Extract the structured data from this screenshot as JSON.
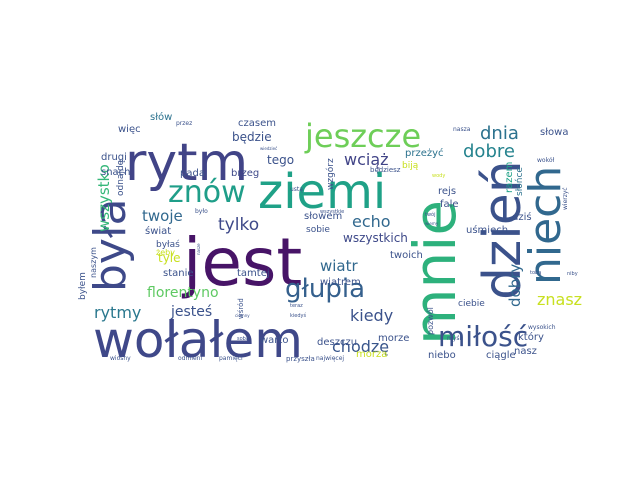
{
  "words": [
    {
      "text": "jest",
      "color": "#471467"
    },
    {
      "text": "mnie",
      "color": "#2db17c"
    },
    {
      "text": "wołałem",
      "color": "#3f4889"
    },
    {
      "text": "ziemi",
      "color": "#1fa187"
    },
    {
      "text": "rytm",
      "color": "#414487"
    },
    {
      "text": "dzień",
      "color": "#3b528b"
    },
    {
      "text": "była",
      "color": "#3e4989"
    },
    {
      "text": "niech",
      "color": "#31688e"
    },
    {
      "text": "jeszcze",
      "color": "#6ece58"
    },
    {
      "text": "znów",
      "color": "#1f9e89"
    },
    {
      "text": "głupia",
      "color": "#35608d"
    },
    {
      "text": "miłość",
      "color": "#3b528b"
    },
    {
      "text": "dnia",
      "color": "#2c728e"
    },
    {
      "text": "dobre",
      "color": "#25838e"
    },
    {
      "text": "wciąż",
      "color": "#414487"
    },
    {
      "text": "echo",
      "color": "#31688e"
    },
    {
      "text": "tylko",
      "color": "#3e4989"
    },
    {
      "text": "twoje",
      "color": "#31688e"
    },
    {
      "text": "wiatr",
      "color": "#31688e"
    },
    {
      "text": "florentyno",
      "color": "#5ec962"
    },
    {
      "text": "jesteś",
      "color": "#3b528b"
    },
    {
      "text": "rytmy",
      "color": "#2a788e"
    },
    {
      "text": "kiedy",
      "color": "#3b528b"
    },
    {
      "text": "chodzę",
      "color": "#39568c"
    },
    {
      "text": "znasz",
      "color": "#c8e020"
    },
    {
      "text": "dobry",
      "color": "#31688e"
    },
    {
      "text": "wszystko",
      "color": "#35b779"
    },
    {
      "text": "wszystkich",
      "color": "#3e4989"
    },
    {
      "text": "będzie",
      "color": "#3b528b"
    },
    {
      "text": "czasem",
      "color": "#3b528b"
    },
    {
      "text": "więc",
      "color": "#3b528b"
    },
    {
      "text": "słów",
      "color": "#2c728e"
    },
    {
      "text": "słowa",
      "color": "#3b528b"
    },
    {
      "text": "drugi",
      "color": "#3b528b"
    },
    {
      "text": "snach",
      "color": "#3b528b"
    },
    {
      "text": "pada",
      "color": "#3b528b"
    },
    {
      "text": "brzeg",
      "color": "#3e4989"
    },
    {
      "text": "tego",
      "color": "#3b528b"
    },
    {
      "text": "przeżyć",
      "color": "#2c728e"
    },
    {
      "text": "rejs",
      "color": "#3b528b"
    },
    {
      "text": "fale",
      "color": "#3b528b"
    },
    {
      "text": "dziś",
      "color": "#3b528b"
    },
    {
      "text": "uśmiech",
      "color": "#3b528b"
    },
    {
      "text": "który",
      "color": "#3b528b"
    },
    {
      "text": "nasz",
      "color": "#3b528b"
    },
    {
      "text": "ciągle",
      "color": "#3b528b"
    },
    {
      "text": "niebo",
      "color": "#3b528b"
    },
    {
      "text": "morze",
      "color": "#3b528b"
    },
    {
      "text": "morza",
      "color": "#c8e020"
    },
    {
      "text": "deszczu",
      "color": "#3b528b"
    },
    {
      "text": "warto",
      "color": "#3b528b"
    },
    {
      "text": "tamtej",
      "color": "#3b528b"
    },
    {
      "text": "stanie",
      "color": "#3b528b"
    },
    {
      "text": "tyle",
      "color": "#c8e020"
    },
    {
      "text": "świat",
      "color": "#3b528b"
    },
    {
      "text": "byłaś",
      "color": "#3b528b"
    },
    {
      "text": "byłem",
      "color": "#3b528b"
    },
    {
      "text": "naszym",
      "color": "#3b528b"
    },
    {
      "text": "słowem",
      "color": "#3b528b"
    },
    {
      "text": "sobie",
      "color": "#3b528b"
    },
    {
      "text": "wiatrem",
      "color": "#3b528b"
    },
    {
      "text": "twoich",
      "color": "#3b528b"
    },
    {
      "text": "ciebie",
      "color": "#3b528b"
    },
    {
      "text": "razem",
      "color": "#1fa187"
    },
    {
      "text": "słońce",
      "color": "#2c728e"
    },
    {
      "text": "wzgórz",
      "color": "#3b528b"
    },
    {
      "text": "biją",
      "color": "#c8e020"
    },
    {
      "text": "odnajdę",
      "color": "#3b528b"
    },
    {
      "text": "żeby",
      "color": "#c8e020"
    },
    {
      "text": "przyszła",
      "color": "#3b528b"
    },
    {
      "text": "pozwól",
      "color": "#3b528b"
    },
    {
      "text": "wiosny",
      "color": "#3b528b"
    },
    {
      "text": "odmieni",
      "color": "#3b528b"
    },
    {
      "text": "pamięci",
      "color": "#3b528b"
    },
    {
      "text": "najwięcej",
      "color": "#3b528b"
    },
    {
      "text": "wysokich",
      "color": "#3b528b"
    },
    {
      "text": "myśli",
      "color": "#3b528b"
    },
    {
      "text": "wśród",
      "color": "#3b528b"
    },
    {
      "text": "przez",
      "color": "#3b528b"
    },
    {
      "text": "nasza",
      "color": "#3b528b"
    },
    {
      "text": "ustą",
      "color": "#3b528b"
    },
    {
      "text": "było",
      "color": "#3b528b"
    },
    {
      "text": "tobą",
      "color": "#3b528b"
    },
    {
      "text": "sobą",
      "color": "#3b528b"
    },
    {
      "text": "teraz",
      "color": "#3b528b"
    },
    {
      "text": "kiedyś",
      "color": "#3b528b"
    },
    {
      "text": "będziesz",
      "color": "#3b528b"
    },
    {
      "text": "wokół",
      "color": "#3b528b"
    },
    {
      "text": "wierzyć",
      "color": "#3b528b"
    },
    {
      "text": "niby",
      "color": "#3b528b"
    },
    {
      "text": "wody",
      "color": "#c8e020"
    },
    {
      "text": "twój",
      "color": "#3b528b"
    },
    {
      "text": "wszystkie",
      "color": "#3b528b"
    },
    {
      "text": "nasze",
      "color": "#3b528b"
    },
    {
      "text": "ciemny",
      "color": "#3b528b"
    },
    {
      "text": "wiemy",
      "color": "#3b528b"
    },
    {
      "text": "wiedzieć",
      "color": "#3b528b"
    }
  ]
}
